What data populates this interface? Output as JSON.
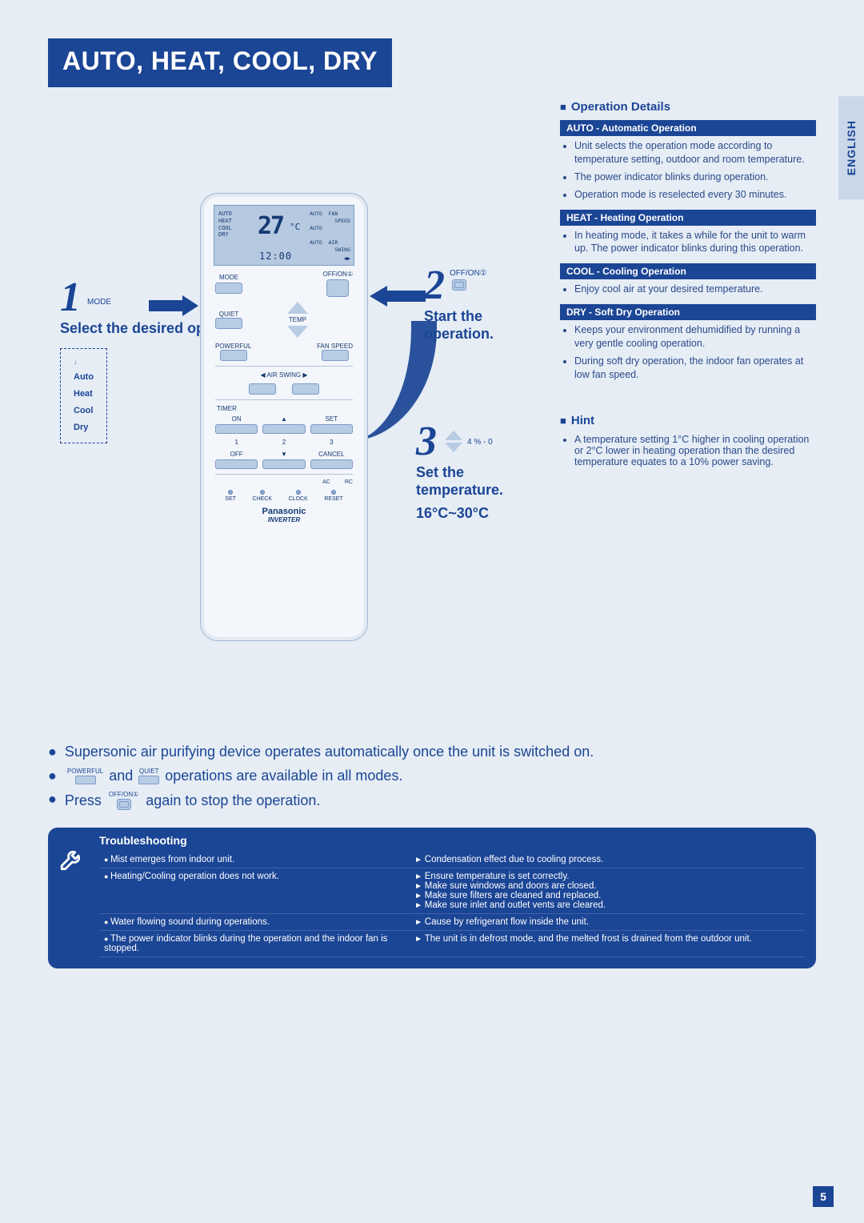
{
  "title_banner": "AUTO, HEAT, COOL, DRY",
  "language_tab": "ENGLISH",
  "page_number": "5",
  "colors": {
    "brand_blue": "#1b4595",
    "page_bg": "#e6edf5",
    "lcd_bg": "#b6c9e0",
    "button_fill": "#b8cce4"
  },
  "steps": {
    "s1": {
      "num": "1",
      "label": "MODE",
      "caption": "Select the desired operation."
    },
    "s2": {
      "num": "2",
      "label": "OFF/ON①",
      "caption": "Start the operation."
    },
    "s3": {
      "num": "3",
      "label": "4 % - 0",
      "caption": "Set the temperature.",
      "range": "16°C~30°C"
    }
  },
  "mode_list": [
    "Auto",
    "Heat",
    "Cool",
    "Dry"
  ],
  "remote": {
    "lcd": {
      "modes": "AUTO\nHEAT\nCOOL\nDRY",
      "temp": "27",
      "unit": "°C",
      "fan_col": "AUTO  FAN\n        SPEED\nAUTO\n\nAUTO  AIR\n        SWING",
      "clock": "12:00",
      "swing": "◀▶"
    },
    "labels": {
      "mode": "MODE",
      "offon": "OFF/ON①",
      "quiet": "QUIET",
      "powerful": "POWERFUL",
      "temp": "TEMP",
      "fanspeed": "FAN SPEED",
      "airswing": "AIR SWING",
      "timer": "TIMER",
      "on": "ON",
      "set": "SET",
      "n1": "1",
      "n2": "2",
      "n3": "3",
      "off": "OFF",
      "cancel": "CANCEL",
      "ac": "AC",
      "rc": "RC",
      "setb": "SET",
      "check": "CHECK",
      "clock": "CLOCK",
      "reset": "RESET",
      "brand": "Panasonic",
      "inverter": "INVERTER"
    }
  },
  "right": {
    "header": "Operation Details",
    "modes": [
      {
        "title": "AUTO - Automatic Operation",
        "bullets": [
          "Unit selects the operation mode according to temperature setting, outdoor and room temperature.",
          "The power indicator blinks during operation.",
          "Operation mode is reselected every 30 minutes."
        ]
      },
      {
        "title": "HEAT - Heating Operation",
        "bullets": [
          "In heating mode, it takes a while for the unit to warm up. The power indicator blinks during this operation."
        ]
      },
      {
        "title": "COOL - Cooling Operation",
        "bullets": [
          "Enjoy cool air at your desired temperature."
        ]
      },
      {
        "title": "DRY - Soft Dry Operation",
        "bullets": [
          "Keeps your environment dehumidiﬁed by running a very gentle cooling operation.",
          "During soft dry operation, the indoor fan operates at low fan speed."
        ]
      }
    ],
    "hint_header": "Hint",
    "hint_bullet": "A temperature setting 1°C higher in cooling operation or 2°C lower in heating operation than the desired temperature equates to a 10% power saving."
  },
  "notes": {
    "n1": "Supersonic air purifying device operates automatically once the unit is switched on.",
    "n2_a": "and",
    "n2_b": "operations are available in all modes.",
    "n3_a": "Press",
    "n3_b": "again to stop the operation.",
    "btn_powerful": "POWERFUL",
    "btn_quiet": "QUIET",
    "btn_offon": "OFF/ON①"
  },
  "trouble": {
    "header": "Troubleshooting",
    "rows": [
      {
        "problem": "Mist emerges from indoor unit.",
        "solutions": [
          "Condensation effect due to cooling process."
        ]
      },
      {
        "problem": "Heating/Cooling operation does not work.",
        "solutions": [
          "Ensure temperature is set correctly.",
          "Make sure windows and doors are closed.",
          "Make sure ﬁlters are cleaned and replaced.",
          "Make sure inlet and outlet vents are cleared."
        ]
      },
      {
        "problem": "Water ﬂowing sound during operations.",
        "solutions": [
          "Cause by refrigerant ﬂow inside the unit."
        ]
      },
      {
        "problem": "The power indicator blinks during the operation and the indoor fan is stopped.",
        "solutions": [
          "The unit is in defrost mode, and the melted frost is drained from the outdoor unit."
        ]
      }
    ]
  }
}
